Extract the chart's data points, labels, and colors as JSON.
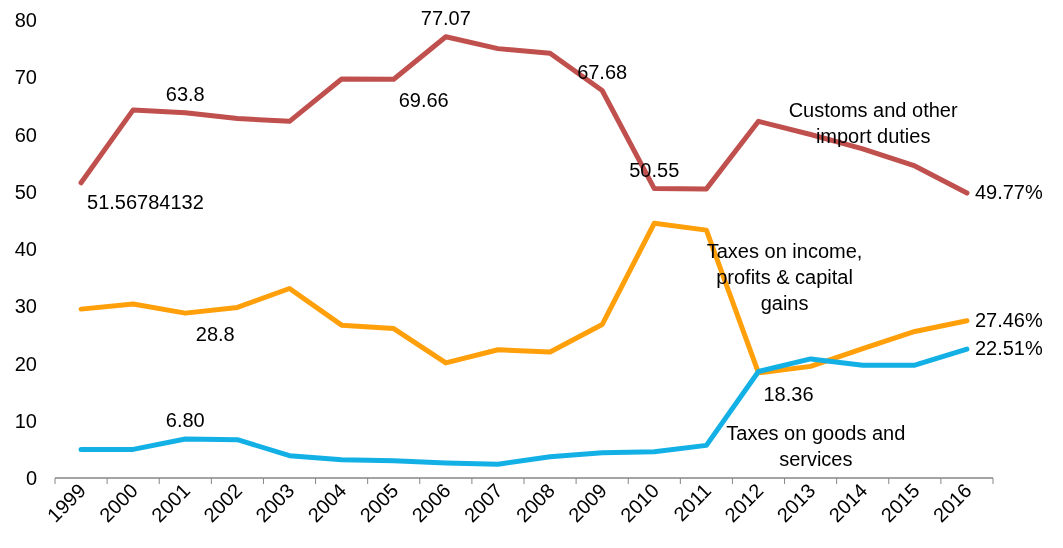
{
  "chart_data": {
    "type": "line",
    "categories": [
      "1999",
      "2000",
      "2001",
      "2002",
      "2003",
      "2004",
      "2005",
      "2006",
      "2007",
      "2008",
      "2009",
      "2010",
      "2011",
      "2012",
      "2013",
      "2014",
      "2015",
      "2016"
    ],
    "ylim": [
      0,
      80
    ],
    "yticks": [
      0,
      10,
      20,
      30,
      40,
      50,
      60,
      70,
      80
    ],
    "grid": false,
    "legend": false,
    "marker": "none",
    "line_style": "solid",
    "series": [
      {
        "name": "Customs and other import duties",
        "color": "#c0504d",
        "values": [
          51.56784132,
          64.3,
          63.8,
          62.8,
          62.3,
          69.7,
          69.66,
          77.07,
          75.0,
          74.2,
          67.68,
          50.55,
          50.5,
          62.3,
          60.0,
          57.5,
          54.5,
          49.77
        ],
        "value_labels": [
          "51.56784132",
          null,
          "63.8",
          null,
          null,
          null,
          "69.66",
          "77.07",
          null,
          null,
          "67.68",
          "50.55",
          null,
          null,
          null,
          null,
          null,
          "49.77%"
        ]
      },
      {
        "name": "Taxes on income, profits & capital gains",
        "color": "#ff9f0a",
        "values": [
          29.5,
          30.4,
          28.8,
          29.8,
          33.1,
          26.7,
          26.1,
          20.1,
          22.4,
          22.0,
          26.8,
          44.5,
          43.3,
          18.36,
          19.5,
          22.6,
          25.6,
          27.46
        ],
        "value_labels": [
          null,
          null,
          "28.8",
          null,
          null,
          null,
          null,
          null,
          null,
          null,
          null,
          null,
          null,
          "18.36",
          null,
          null,
          null,
          "27.46%"
        ]
      },
      {
        "name": "Taxes on goods and services",
        "color": "#13b0e6",
        "values": [
          5.0,
          5.0,
          6.8,
          6.7,
          3.9,
          3.2,
          3.0,
          2.6,
          2.4,
          3.7,
          4.4,
          4.6,
          5.7,
          18.6,
          20.8,
          19.7,
          19.7,
          22.51
        ],
        "value_labels": [
          null,
          null,
          "6.80",
          null,
          null,
          null,
          null,
          null,
          null,
          null,
          null,
          null,
          null,
          null,
          null,
          null,
          null,
          "22.51%"
        ]
      }
    ]
  }
}
